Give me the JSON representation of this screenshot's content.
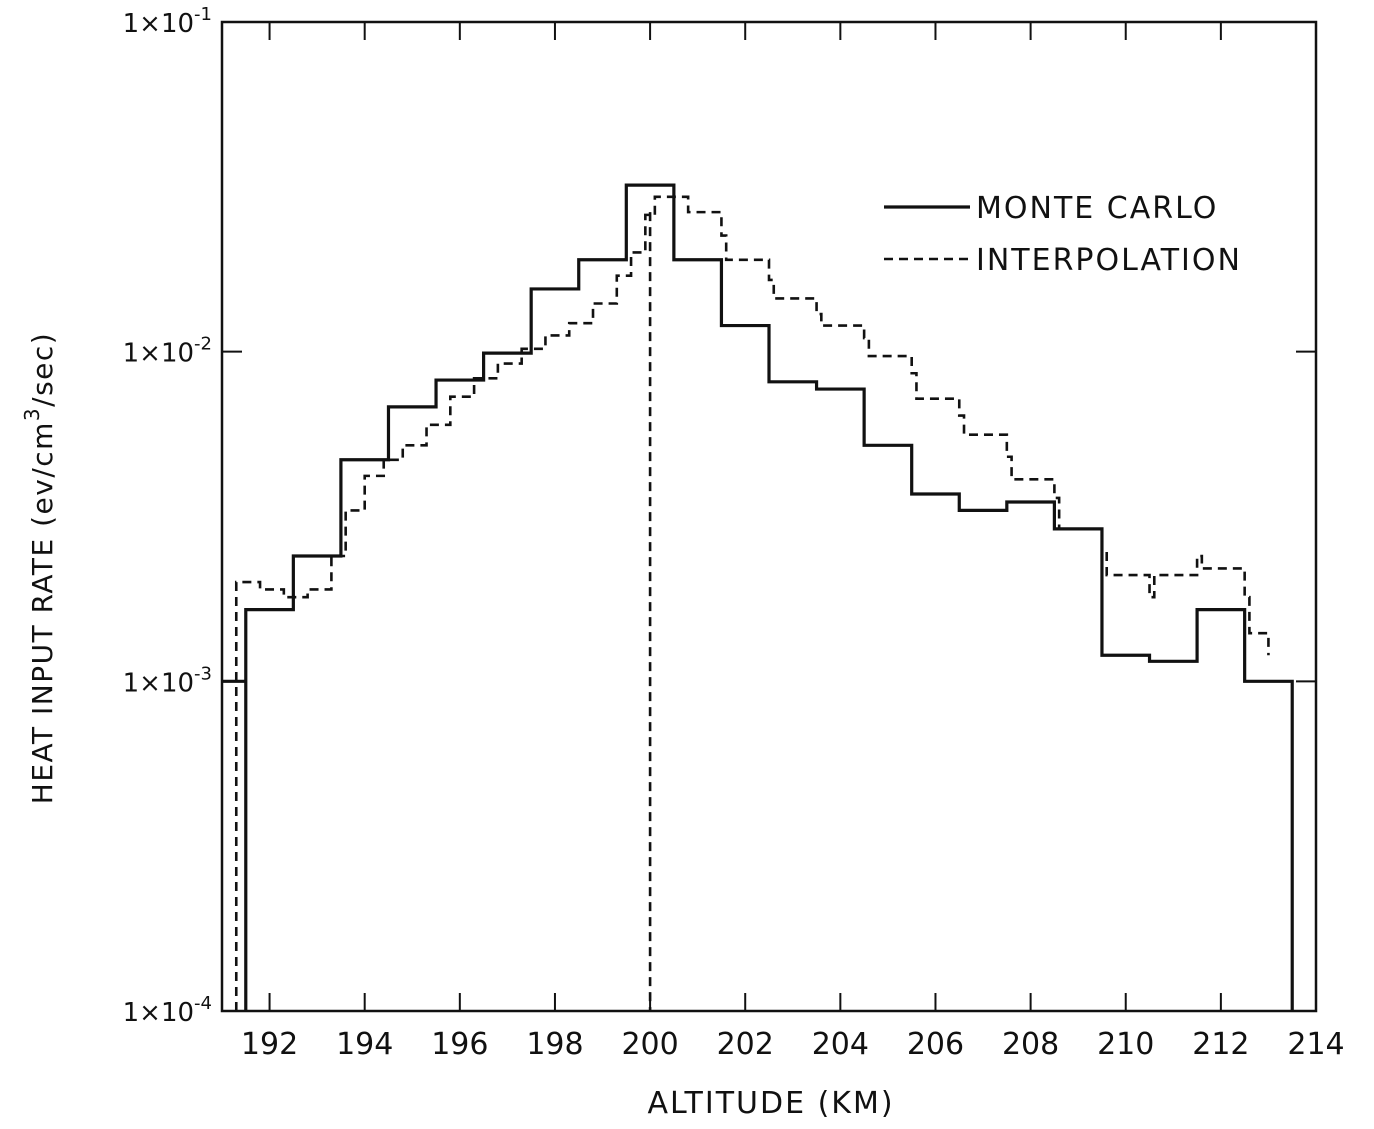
{
  "chart_data": {
    "type": "line",
    "step": true,
    "xlabel": "ALTITUDE (KM)",
    "ylabel_parts": {
      "before": "HEAT INPUT RATE (ev/cm",
      "sup": "3",
      "after": "/sec)"
    },
    "xlim": [
      191,
      214
    ],
    "ylim": [
      0.0001,
      0.1
    ],
    "yscale": "log",
    "x_ticks": [
      192,
      194,
      196,
      198,
      200,
      202,
      204,
      206,
      208,
      210,
      212,
      214
    ],
    "y_ticks": [
      {
        "value": 0.1,
        "mantissa": "1×10",
        "exp": "-1"
      },
      {
        "value": 0.01,
        "mantissa": "1×10",
        "exp": "-2"
      },
      {
        "value": 0.001,
        "mantissa": "1×10",
        "exp": "-3"
      },
      {
        "value": 0.0001,
        "mantissa": "1×10",
        "exp": "-4"
      }
    ],
    "legend_position": "top-right",
    "series": [
      {
        "name": "MONTE CARLO",
        "style": "solid",
        "edges": [
          191.0,
          191.5,
          192.5,
          193.5,
          194.5,
          195.5,
          196.5,
          197.5,
          198.5,
          199.5,
          200.5,
          201.5,
          202.5,
          203.5,
          204.5,
          205.5,
          206.5,
          207.5,
          208.5,
          209.5,
          210.5,
          211.5,
          212.5,
          213.5
        ],
        "values": [
          0.001,
          0.00165,
          0.0024,
          0.0047,
          0.0068,
          0.0082,
          0.0099,
          0.0155,
          0.019,
          0.032,
          0.019,
          0.012,
          0.0081,
          0.0077,
          0.0052,
          0.0037,
          0.0033,
          0.0035,
          0.0029,
          0.0012,
          0.00115,
          0.00165,
          0.001
        ]
      },
      {
        "name": "INTERPOLATION",
        "style": "dashed",
        "edges": [
          191.3,
          191.8,
          192.3,
          192.8,
          193.3,
          193.6,
          194.0,
          194.4,
          194.8,
          195.3,
          195.8,
          196.3,
          196.8,
          197.3,
          197.8,
          198.3,
          198.8,
          199.3,
          199.6,
          199.9,
          200.1,
          200.8,
          201.5,
          201.6,
          202.5,
          202.6,
          203.5,
          203.6,
          204.5,
          204.6,
          205.5,
          205.6,
          206.5,
          206.6,
          207.5,
          207.6,
          208.5,
          208.6,
          209.5,
          209.6,
          210.5,
          210.6,
          211.5,
          211.6,
          212.5,
          212.6,
          213.0
        ],
        "values": [
          0.002,
          0.0019,
          0.0018,
          0.0019,
          0.0024,
          0.0033,
          0.0042,
          0.0047,
          0.0052,
          0.006,
          0.0073,
          0.0083,
          0.0092,
          0.0102,
          0.0112,
          0.0122,
          0.014,
          0.017,
          0.02,
          0.026,
          0.0295,
          0.0265,
          0.0225,
          0.019,
          0.0165,
          0.0145,
          0.013,
          0.012,
          0.011,
          0.0097,
          0.0086,
          0.0072,
          0.0064,
          0.0056,
          0.0048,
          0.0041,
          0.0036,
          0.0029,
          0.0025,
          0.0021,
          0.0018,
          0.0021,
          0.0024,
          0.0022,
          0.0018,
          0.0014,
          0.0012
        ]
      }
    ],
    "interpolation_spike_x": 200,
    "interpolation_end_x": 213.0
  }
}
